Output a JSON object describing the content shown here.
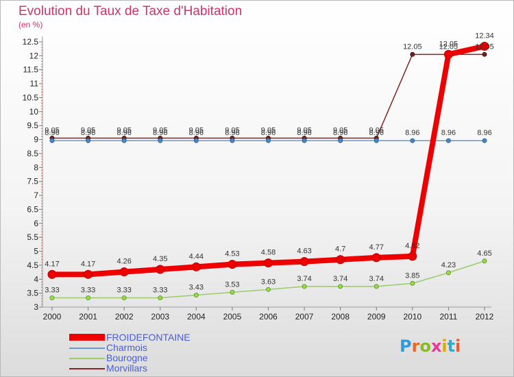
{
  "title": "Evolution du Taux de Taxe d'Habitation",
  "subtitle": "(en %)",
  "brand": "Proxiti",
  "chart_data": {
    "type": "line",
    "title": "Evolution du Taux de Taxe d'Habitation",
    "ylabel": "(en %)",
    "x": [
      "2000",
      "2001",
      "2002",
      "2003",
      "2004",
      "2005",
      "2006",
      "2007",
      "2008",
      "2009",
      "2010",
      "2011",
      "2012"
    ],
    "ylim": [
      3,
      12.5
    ],
    "y_ticks": [
      "3",
      "3.5",
      "4",
      "4.5",
      "5",
      "5.5",
      "6",
      "6.5",
      "7",
      "7.5",
      "8",
      "8.5",
      "9",
      "9.5",
      "10",
      "10.5",
      "11",
      "11.5",
      "12",
      "12.5"
    ],
    "grid": false,
    "legend_position": "bottom-left",
    "series": [
      {
        "name": "FROIDEFONTAINE",
        "color": "#ee0000",
        "values": [
          4.17,
          4.17,
          4.26,
          4.35,
          4.44,
          4.53,
          4.58,
          4.63,
          4.7,
          4.77,
          4.82,
          12.05,
          12.34
        ],
        "labels": [
          "4.17",
          "4.17",
          "4.26",
          "4.35",
          "4.44",
          "4.53",
          "4.58",
          "4.63",
          "4.7",
          "4.77",
          "4.82",
          "12.05",
          "12.34"
        ]
      },
      {
        "name": "Charmois",
        "color": "#6699cc",
        "values": [
          8.96,
          8.96,
          8.96,
          8.96,
          8.96,
          8.96,
          8.96,
          8.96,
          8.96,
          8.96,
          8.96,
          8.96,
          8.96
        ],
        "labels": [
          "8.96",
          "8.96",
          "8.96",
          "8.96",
          "8.96",
          "8.96",
          "8.96",
          "8.96",
          "8.96",
          "8.96",
          "8.96",
          "8.96",
          "8.96"
        ]
      },
      {
        "name": "Bourogne",
        "color": "#99cc66",
        "values": [
          3.33,
          3.33,
          3.33,
          3.33,
          3.43,
          3.53,
          3.63,
          3.74,
          3.74,
          3.74,
          3.85,
          4.23,
          4.65
        ],
        "labels": [
          "3.33",
          "3.33",
          "3.33",
          "3.33",
          "3.43",
          "3.53",
          "3.63",
          "3.74",
          "3.74",
          "3.74",
          "3.85",
          "4.23",
          "4.65"
        ]
      },
      {
        "name": "Morvillars",
        "color": "#882222",
        "values": [
          9.05,
          9.05,
          9.05,
          9.05,
          9.05,
          9.05,
          9.05,
          9.05,
          9.05,
          9.05,
          12.05,
          12.05,
          12.05
        ],
        "labels": [
          "9.05",
          "9.05",
          "9.05",
          "9.05",
          "9.05",
          "9.05",
          "9.05",
          "9.05",
          "9.05",
          "9.05",
          "12.05",
          "12.05",
          "12.05"
        ]
      }
    ]
  }
}
